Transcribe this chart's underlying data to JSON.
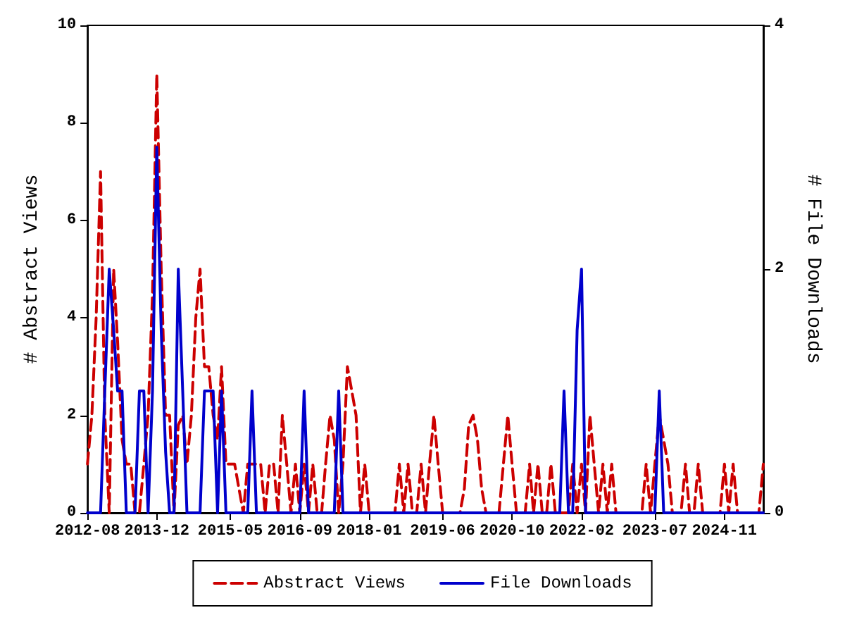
{
  "chart_data": {
    "type": "line",
    "xlabel": null,
    "ylabel": "# Abstract Views",
    "y2label": "# File Downloads",
    "x": [
      "2012-08",
      "2012-09",
      "2012-10",
      "2012-11",
      "2012-12",
      "2013-01",
      "2013-02",
      "2013-03",
      "2013-04",
      "2013-05",
      "2013-06",
      "2013-07",
      "2013-08",
      "2013-09",
      "2013-10",
      "2013-11",
      "2013-12",
      "2014-01",
      "2014-02",
      "2014-03",
      "2014-04",
      "2014-05",
      "2014-06",
      "2014-07",
      "2014-08",
      "2014-09",
      "2014-10",
      "2014-11",
      "2014-12",
      "2015-01",
      "2015-02",
      "2015-03",
      "2015-04",
      "2015-05",
      "2015-06",
      "2015-07",
      "2015-08",
      "2015-09",
      "2015-10",
      "2015-11",
      "2015-12",
      "2016-01",
      "2016-02",
      "2016-03",
      "2016-04",
      "2016-05",
      "2016-06",
      "2016-07",
      "2016-08",
      "2016-09",
      "2016-10",
      "2016-11",
      "2016-12",
      "2017-01",
      "2017-02",
      "2017-03",
      "2017-04",
      "2017-05",
      "2017-06",
      "2017-07",
      "2017-08",
      "2017-09",
      "2017-10",
      "2017-11",
      "2017-12",
      "2018-01",
      "2018-02",
      "2018-03",
      "2018-04",
      "2018-05",
      "2018-06",
      "2018-07",
      "2018-08",
      "2018-09",
      "2018-10",
      "2018-11",
      "2018-12",
      "2019-01",
      "2019-02",
      "2019-03",
      "2019-04",
      "2019-05",
      "2019-06",
      "2019-07",
      "2019-08",
      "2019-09",
      "2019-10",
      "2019-11",
      "2019-12",
      "2020-01",
      "2020-02",
      "2020-03",
      "2020-04",
      "2020-05",
      "2020-06",
      "2020-07",
      "2020-08",
      "2020-09",
      "2020-10",
      "2020-11",
      "2020-12",
      "2021-01",
      "2021-02",
      "2021-03",
      "2021-04",
      "2021-05",
      "2021-06",
      "2021-07",
      "2021-08",
      "2021-09",
      "2021-10",
      "2021-11",
      "2021-12",
      "2022-01",
      "2022-02",
      "2022-03",
      "2022-04",
      "2022-05",
      "2022-06",
      "2022-07",
      "2022-08",
      "2022-09",
      "2022-10",
      "2022-11",
      "2022-12",
      "2023-01",
      "2023-02",
      "2023-03",
      "2023-04",
      "2023-05",
      "2023-06",
      "2023-07",
      "2023-08",
      "2023-09",
      "2023-10",
      "2023-11",
      "2023-12",
      "2024-01",
      "2024-02",
      "2024-03",
      "2024-04",
      "2024-05",
      "2024-06",
      "2024-07",
      "2024-08",
      "2024-09",
      "2024-10",
      "2024-11",
      "2024-12",
      "2025-01",
      "2025-02",
      "2025-03",
      "2025-04",
      "2025-05",
      "2025-06",
      "2025-07",
      "2025-08"
    ],
    "series": [
      {
        "name": "Abstract Views",
        "color": "#cc0000",
        "line_style": "dashed",
        "values": [
          1,
          2,
          4,
          7,
          2,
          0,
          5,
          3.5,
          1.5,
          1,
          1,
          0,
          0,
          1,
          2,
          4.5,
          9,
          5,
          2,
          2,
          0,
          1.8,
          2,
          1,
          2,
          4,
          5,
          3,
          3,
          2,
          1.5,
          3,
          1,
          1,
          1,
          0.5,
          0,
          1,
          1,
          1,
          1,
          0,
          1,
          1,
          0,
          2,
          1,
          0,
          1,
          0,
          1,
          0,
          1,
          0,
          0,
          1,
          2,
          1.5,
          0,
          1,
          3,
          2.5,
          2,
          0,
          1,
          0,
          0,
          0,
          0,
          0,
          0,
          0,
          1,
          0,
          1,
          0,
          0,
          1,
          0,
          1,
          2,
          1,
          0,
          0,
          0,
          0,
          0,
          0.5,
          1.8,
          2,
          1.5,
          0.5,
          0,
          0,
          0,
          0,
          1,
          2,
          1,
          0,
          0,
          0,
          1,
          0,
          1,
          0,
          0,
          1,
          0,
          0,
          0,
          0,
          1,
          0,
          1,
          0,
          2,
          1,
          0,
          1,
          0,
          1,
          0,
          0,
          0,
          0,
          0,
          0,
          0,
          1,
          0,
          1,
          2,
          1.5,
          1,
          0,
          0,
          0,
          1,
          0,
          0,
          1,
          0,
          0,
          0,
          0,
          0,
          1,
          0,
          1,
          0,
          0,
          0,
          0,
          0,
          0,
          1
        ]
      },
      {
        "name": "File Downloads",
        "color": "#0000cc",
        "line_style": "solid",
        "axis": "y2",
        "values": [
          0,
          0,
          0,
          0,
          1,
          2,
          1.5,
          1,
          1,
          0,
          0,
          0,
          1,
          1,
          0,
          1,
          3,
          1.5,
          0.5,
          0,
          0,
          2,
          1,
          0,
          0,
          0,
          0,
          1,
          1,
          1,
          0,
          1,
          0,
          0,
          0,
          0,
          0,
          0,
          1,
          0,
          0,
          0,
          0,
          0,
          0,
          0,
          0,
          0,
          0,
          0,
          1,
          0,
          0,
          0,
          0,
          0,
          0,
          0,
          1,
          0,
          0,
          0,
          0,
          0,
          0,
          0,
          0,
          0,
          0,
          0,
          0,
          0,
          0,
          0,
          0,
          0,
          0,
          0,
          0,
          0,
          0,
          0,
          0,
          0,
          0,
          0,
          0,
          0,
          0,
          0,
          0,
          0,
          0,
          0,
          0,
          0,
          0,
          0,
          0,
          0,
          0,
          0,
          0,
          0,
          0,
          0,
          0,
          0,
          0,
          0,
          1,
          0,
          0,
          1.5,
          2,
          0,
          0,
          0,
          0,
          0,
          0,
          0,
          0,
          0,
          0,
          0,
          0,
          0,
          0,
          0,
          0,
          0,
          1,
          0,
          0,
          0,
          0,
          0,
          0,
          0,
          0,
          0,
          0,
          0,
          0,
          0,
          0,
          0,
          0,
          0,
          0,
          0,
          0,
          0,
          0,
          0,
          0
        ]
      }
    ],
    "xlim": [
      "2012-08",
      "2025-08"
    ],
    "xticks": [
      "2012-08",
      "2013-12",
      "2015-05",
      "2016-09",
      "2018-01",
      "2019-06",
      "2020-10",
      "2022-02",
      "2023-07",
      "2024-11"
    ],
    "ylim": [
      0,
      10
    ],
    "yticks": [
      0,
      2,
      4,
      6,
      8,
      10
    ],
    "y2lim": [
      0,
      4
    ],
    "y2ticks": [
      0,
      2,
      4
    ],
    "legend": "bottom",
    "grid": false,
    "marker": "none"
  }
}
